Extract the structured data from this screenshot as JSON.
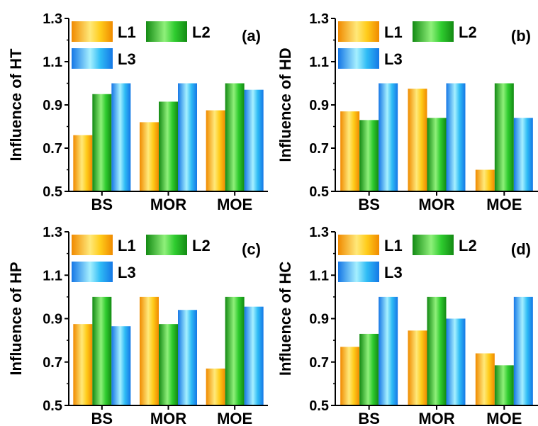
{
  "colors": {
    "L1": {
      "light": "#ffe97a",
      "mid": "#ffcc1a",
      "dark": "#f08a00"
    },
    "L2": {
      "light": "#8ff07a",
      "mid": "#2fcc2f",
      "dark": "#138a13"
    },
    "L3": {
      "light": "#a6f0ff",
      "mid": "#2fbcf5",
      "dark": "#1577e6"
    }
  },
  "chart_data": [
    {
      "type": "bar",
      "panel_label": "(a)",
      "ylabel": "Influence of HT",
      "categories": [
        "BS",
        "MOR",
        "MOE"
      ],
      "ylim": [
        0.5,
        1.3
      ],
      "yticks": [
        "0.5",
        "0.7",
        "0.9",
        "1.1",
        "1.3"
      ],
      "legend": [
        "L1",
        "L2",
        "L3"
      ],
      "series": [
        {
          "name": "L1",
          "values": [
            0.76,
            0.82,
            0.875
          ]
        },
        {
          "name": "L2",
          "values": [
            0.95,
            0.915,
            1.0
          ]
        },
        {
          "name": "L3",
          "values": [
            1.0,
            1.0,
            0.97
          ]
        }
      ]
    },
    {
      "type": "bar",
      "panel_label": "(b)",
      "ylabel": "Influence of HD",
      "categories": [
        "BS",
        "MOR",
        "MOE"
      ],
      "ylim": [
        0.5,
        1.3
      ],
      "yticks": [
        "0.5",
        "0.7",
        "0.9",
        "1.1",
        "1.3"
      ],
      "legend": [
        "L1",
        "L2",
        "L3"
      ],
      "series": [
        {
          "name": "L1",
          "values": [
            0.87,
            0.975,
            0.6
          ]
        },
        {
          "name": "L2",
          "values": [
            0.83,
            0.84,
            1.0
          ]
        },
        {
          "name": "L3",
          "values": [
            1.0,
            1.0,
            0.84
          ]
        }
      ]
    },
    {
      "type": "bar",
      "panel_label": "(c)",
      "ylabel": "Influence of HP",
      "categories": [
        "BS",
        "MOR",
        "MOE"
      ],
      "ylim": [
        0.5,
        1.3
      ],
      "yticks": [
        "0.5",
        "0.7",
        "0.9",
        "1.1",
        "1.3"
      ],
      "legend": [
        "L1",
        "L2",
        "L3"
      ],
      "series": [
        {
          "name": "L1",
          "values": [
            0.875,
            1.0,
            0.67
          ]
        },
        {
          "name": "L2",
          "values": [
            1.0,
            0.875,
            1.0
          ]
        },
        {
          "name": "L3",
          "values": [
            0.865,
            0.94,
            0.955
          ]
        }
      ]
    },
    {
      "type": "bar",
      "panel_label": "(d)",
      "ylabel": "Influence of HC",
      "categories": [
        "BS",
        "MOR",
        "MOE"
      ],
      "ylim": [
        0.5,
        1.3
      ],
      "yticks": [
        "0.5",
        "0.7",
        "0.9",
        "1.1",
        "1.3"
      ],
      "legend": [
        "L1",
        "L2",
        "L3"
      ],
      "series": [
        {
          "name": "L1",
          "values": [
            0.77,
            0.845,
            0.74
          ]
        },
        {
          "name": "L2",
          "values": [
            0.83,
            1.0,
            0.685
          ]
        },
        {
          "name": "L3",
          "values": [
            1.0,
            0.9,
            1.0
          ]
        }
      ]
    }
  ]
}
